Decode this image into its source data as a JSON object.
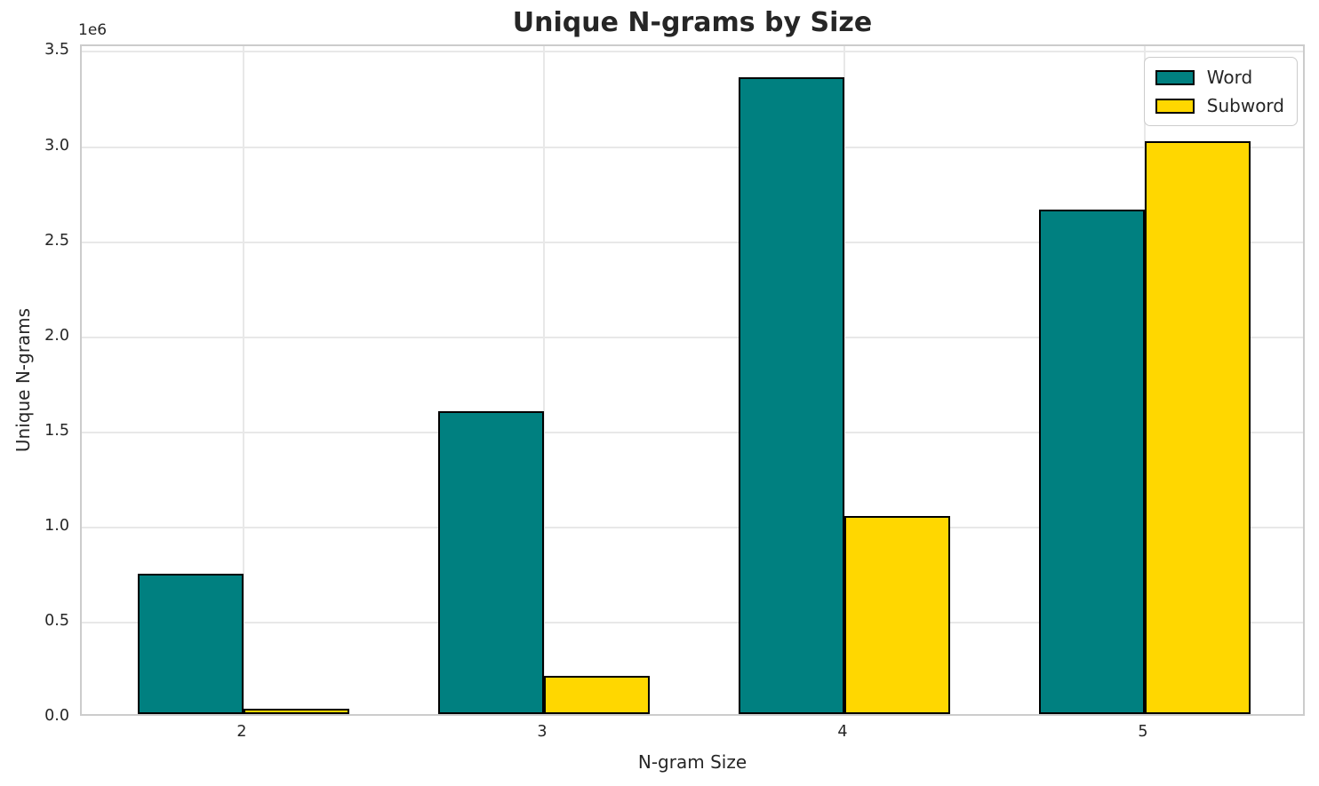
{
  "chart_data": {
    "type": "bar",
    "title": "Unique N-grams by Size",
    "xlabel": "N-gram Size",
    "ylabel": "Unique N-grams",
    "offset_text": "1e6",
    "categories": [
      "2",
      "3",
      "4",
      "5"
    ],
    "series": [
      {
        "name": "Word",
        "color": "#008080",
        "values": [
          740000,
          1590000,
          3350000,
          2650000
        ]
      },
      {
        "name": "Subword",
        "color": "#FFD700",
        "values": [
          30000,
          200000,
          1040000,
          3010000
        ]
      }
    ],
    "bar_edge_color": "#000000",
    "ylim": [
      0,
      3530000
    ],
    "yticks": [
      0,
      500000,
      1000000,
      1500000,
      2000000,
      2500000,
      3000000,
      3500000
    ],
    "ytick_labels": [
      "0.0",
      "0.5",
      "1.0",
      "1.5",
      "2.0",
      "2.5",
      "3.0",
      "3.5"
    ],
    "grid": true,
    "legend_position": "upper right",
    "colors": {
      "grid": "#e8e8e8",
      "spine": "#cccccc",
      "text": "#262626",
      "background": "#ffffff"
    }
  }
}
